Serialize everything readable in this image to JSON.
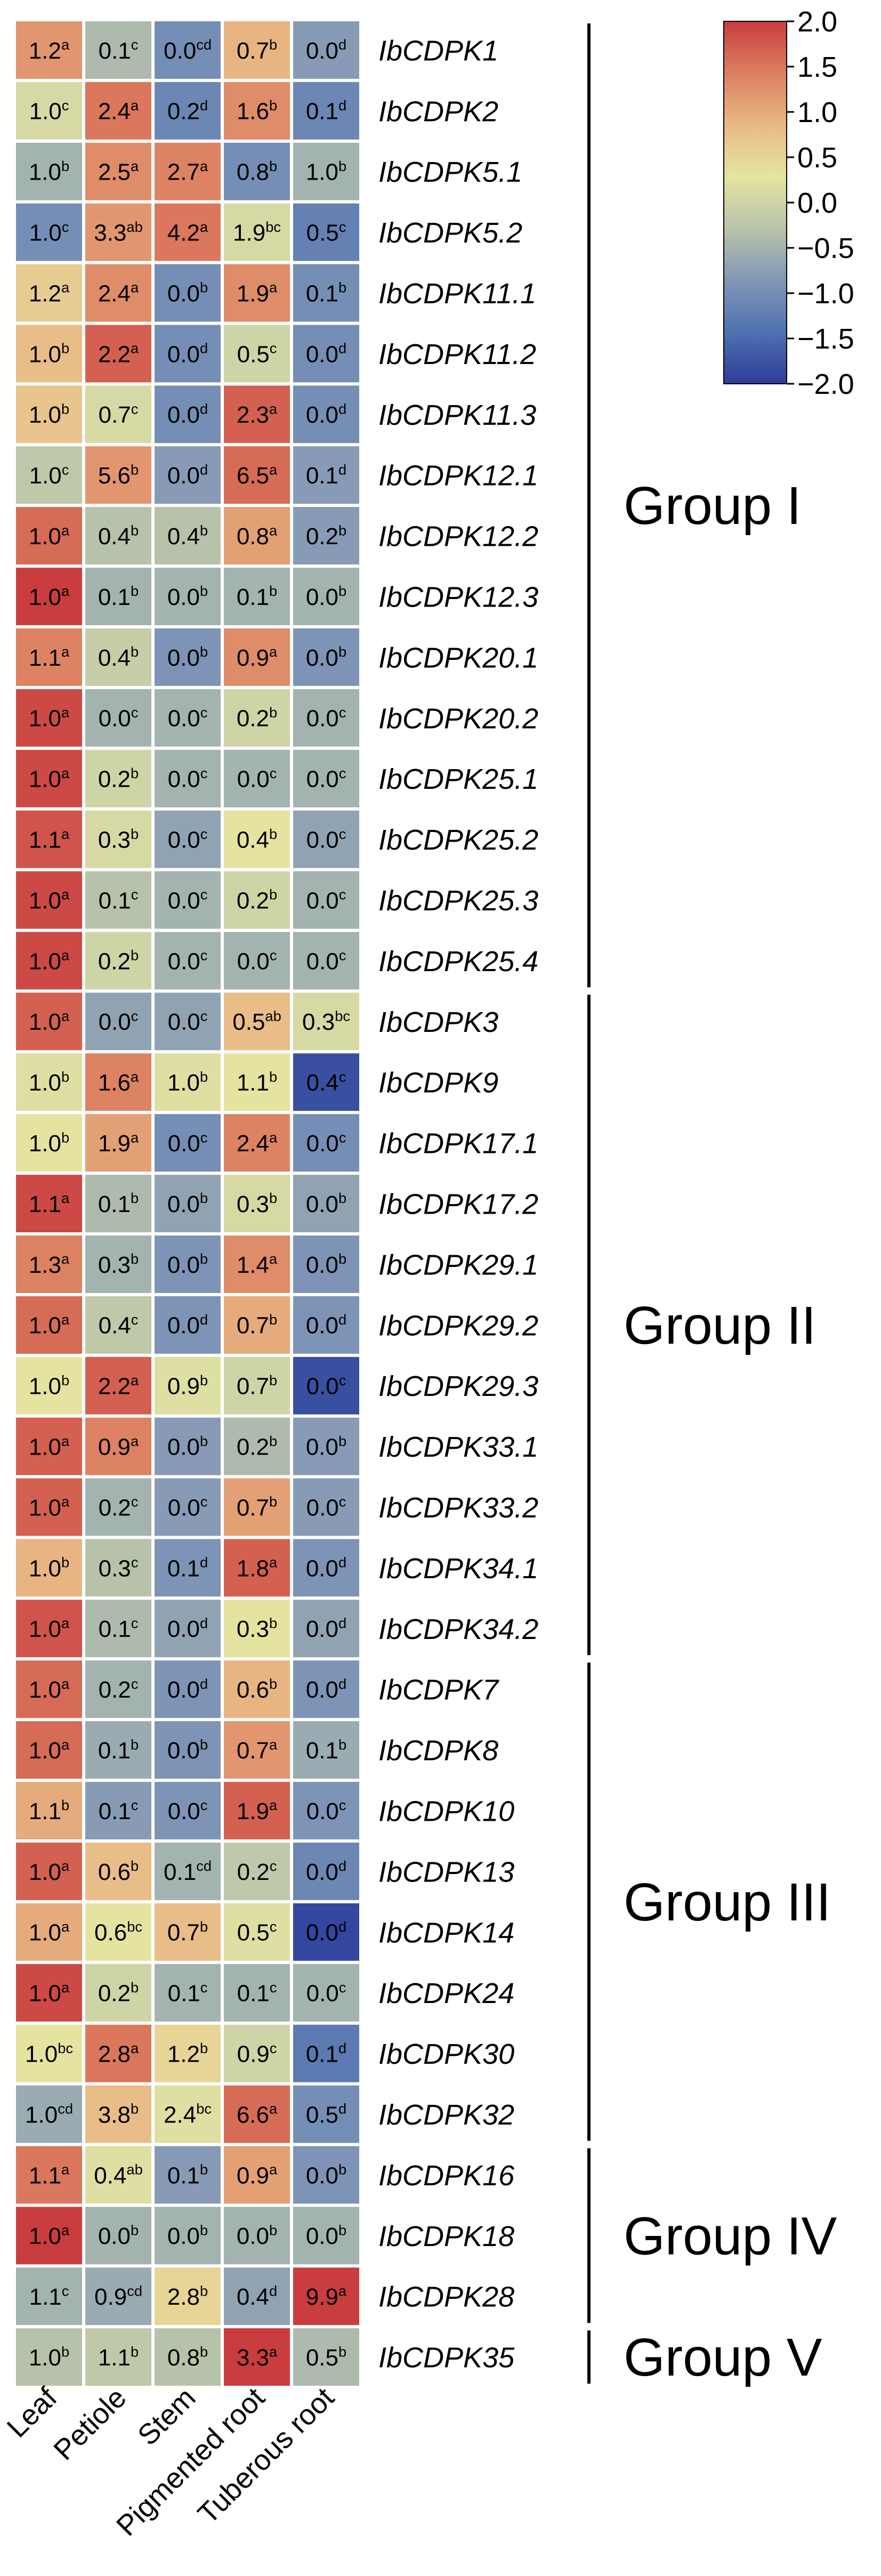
{
  "chart_data": {
    "type": "heatmap",
    "columns": [
      "Leaf",
      "Petiole",
      "Stem",
      "Pigmented root",
      "Tuberous root"
    ],
    "rows": [
      {
        "gene": "IbCDPK1",
        "z": [
          1.2,
          -0.4,
          -1.0,
          0.9,
          -0.8
        ],
        "labels": [
          [
            "1.2",
            "a"
          ],
          [
            "0.1",
            "c"
          ],
          [
            "0.0",
            "cd"
          ],
          [
            "0.7",
            "b"
          ],
          [
            "0.0",
            "d"
          ]
        ]
      },
      {
        "gene": "IbCDPK2",
        "z": [
          0.1,
          1.5,
          -1.1,
          1.3,
          -1.1
        ],
        "labels": [
          [
            "1.0",
            "c"
          ],
          [
            "2.4",
            "a"
          ],
          [
            "0.2",
            "d"
          ],
          [
            "1.6",
            "b"
          ],
          [
            "0.1",
            "d"
          ]
        ]
      },
      {
        "gene": "IbCDPK5.1",
        "z": [
          -0.5,
          1.3,
          1.4,
          -1.0,
          -0.5
        ],
        "labels": [
          [
            "1.0",
            "b"
          ],
          [
            "2.5",
            "a"
          ],
          [
            "2.7",
            "a"
          ],
          [
            "0.8",
            "b"
          ],
          [
            "1.0",
            "b"
          ]
        ]
      },
      {
        "gene": "IbCDPK5.2",
        "z": [
          -1.0,
          1.2,
          1.5,
          0.1,
          -1.2
        ],
        "labels": [
          [
            "1.0",
            "c"
          ],
          [
            "3.3",
            "ab"
          ],
          [
            "4.2",
            "a"
          ],
          [
            "1.9",
            "bc"
          ],
          [
            "0.5",
            "c"
          ]
        ]
      },
      {
        "gene": "IbCDPK11.1",
        "z": [
          0.6,
          1.3,
          -1.0,
          1.3,
          -1.0
        ],
        "labels": [
          [
            "1.2",
            "a"
          ],
          [
            "2.4",
            "a"
          ],
          [
            "0.0",
            "b"
          ],
          [
            "1.9",
            "a"
          ],
          [
            "0.1",
            "b"
          ]
        ]
      },
      {
        "gene": "IbCDPK11.2",
        "z": [
          0.8,
          1.7,
          -1.0,
          0.0,
          -1.0
        ],
        "labels": [
          [
            "1.0",
            "b"
          ],
          [
            "2.2",
            "a"
          ],
          [
            "0.0",
            "d"
          ],
          [
            "0.5",
            "c"
          ],
          [
            "0.0",
            "d"
          ]
        ]
      },
      {
        "gene": "IbCDPK11.3",
        "z": [
          0.7,
          0.1,
          -1.0,
          1.7,
          -1.0
        ],
        "labels": [
          [
            "1.0",
            "b"
          ],
          [
            "0.7",
            "c"
          ],
          [
            "0.0",
            "d"
          ],
          [
            "2.3",
            "a"
          ],
          [
            "0.0",
            "d"
          ]
        ]
      },
      {
        "gene": "IbCDPK12.1",
        "z": [
          -0.2,
          1.2,
          -0.8,
          1.6,
          -0.8
        ],
        "labels": [
          [
            "1.0",
            "c"
          ],
          [
            "5.6",
            "b"
          ],
          [
            "0.0",
            "d"
          ],
          [
            "6.5",
            "a"
          ],
          [
            "0.1",
            "d"
          ]
        ]
      },
      {
        "gene": "IbCDPK12.2",
        "z": [
          1.6,
          -0.3,
          -0.3,
          1.1,
          -0.8
        ],
        "labels": [
          [
            "1.0",
            "a"
          ],
          [
            "0.4",
            "b"
          ],
          [
            "0.4",
            "b"
          ],
          [
            "0.8",
            "a"
          ],
          [
            "0.2",
            "b"
          ]
        ]
      },
      {
        "gene": "IbCDPK12.3",
        "z": [
          2.0,
          -0.5,
          -0.5,
          -0.5,
          -0.5
        ],
        "labels": [
          [
            "1.0",
            "a"
          ],
          [
            "0.1",
            "b"
          ],
          [
            "0.0",
            "b"
          ],
          [
            "0.1",
            "b"
          ],
          [
            "0.0",
            "b"
          ]
        ]
      },
      {
        "gene": "IbCDPK20.1",
        "z": [
          1.4,
          -0.1,
          -0.9,
          1.3,
          -0.9
        ],
        "labels": [
          [
            "1.1",
            "a"
          ],
          [
            "0.4",
            "b"
          ],
          [
            "0.0",
            "b"
          ],
          [
            "0.9",
            "a"
          ],
          [
            "0.0",
            "b"
          ]
        ]
      },
      {
        "gene": "IbCDPK20.2",
        "z": [
          1.9,
          -0.5,
          -0.5,
          0.0,
          -0.5
        ],
        "labels": [
          [
            "1.0",
            "a"
          ],
          [
            "0.0",
            "c"
          ],
          [
            "0.0",
            "c"
          ],
          [
            "0.2",
            "b"
          ],
          [
            "0.0",
            "c"
          ]
        ]
      },
      {
        "gene": "IbCDPK25.1",
        "z": [
          1.9,
          0.0,
          -0.5,
          -0.5,
          -0.5
        ],
        "labels": [
          [
            "1.0",
            "a"
          ],
          [
            "0.2",
            "b"
          ],
          [
            "0.0",
            "c"
          ],
          [
            "0.0",
            "c"
          ],
          [
            "0.0",
            "c"
          ]
        ]
      },
      {
        "gene": "IbCDPK25.2",
        "z": [
          1.8,
          0.1,
          -0.7,
          0.3,
          -0.7
        ],
        "labels": [
          [
            "1.1",
            "a"
          ],
          [
            "0.3",
            "b"
          ],
          [
            "0.0",
            "c"
          ],
          [
            "0.4",
            "b"
          ],
          [
            "0.0",
            "c"
          ]
        ]
      },
      {
        "gene": "IbCDPK25.3",
        "z": [
          1.9,
          -0.3,
          -0.5,
          0.0,
          -0.5
        ],
        "labels": [
          [
            "1.0",
            "a"
          ],
          [
            "0.1",
            "c"
          ],
          [
            "0.0",
            "c"
          ],
          [
            "0.2",
            "b"
          ],
          [
            "0.0",
            "c"
          ]
        ]
      },
      {
        "gene": "IbCDPK25.4",
        "z": [
          1.9,
          0.0,
          -0.5,
          -0.5,
          -0.5
        ],
        "labels": [
          [
            "1.0",
            "a"
          ],
          [
            "0.2",
            "b"
          ],
          [
            "0.0",
            "c"
          ],
          [
            "0.0",
            "c"
          ],
          [
            "0.0",
            "c"
          ]
        ]
      },
      {
        "gene": "IbCDPK3",
        "z": [
          1.7,
          -0.7,
          -0.7,
          0.8,
          0.1
        ],
        "labels": [
          [
            "1.0",
            "a"
          ],
          [
            "0.0",
            "c"
          ],
          [
            "0.0",
            "c"
          ],
          [
            "0.5",
            "ab"
          ],
          [
            "0.3",
            "bc"
          ]
        ]
      },
      {
        "gene": "IbCDPK9",
        "z": [
          0.2,
          1.4,
          0.2,
          0.3,
          -1.8
        ],
        "labels": [
          [
            "1.0",
            "b"
          ],
          [
            "1.6",
            "a"
          ],
          [
            "1.0",
            "b"
          ],
          [
            "1.1",
            "b"
          ],
          [
            "0.4",
            "c"
          ]
        ]
      },
      {
        "gene": "IbCDPK17.1",
        "z": [
          0.3,
          1.1,
          -1.0,
          1.4,
          -1.0
        ],
        "labels": [
          [
            "1.0",
            "b"
          ],
          [
            "1.9",
            "a"
          ],
          [
            "0.0",
            "c"
          ],
          [
            "2.4",
            "a"
          ],
          [
            "0.0",
            "c"
          ]
        ]
      },
      {
        "gene": "IbCDPK17.2",
        "z": [
          1.9,
          -0.4,
          -0.7,
          0.1,
          -0.7
        ],
        "labels": [
          [
            "1.1",
            "a"
          ],
          [
            "0.1",
            "b"
          ],
          [
            "0.0",
            "b"
          ],
          [
            "0.3",
            "b"
          ],
          [
            "0.0",
            "b"
          ]
        ]
      },
      {
        "gene": "IbCDPK29.1",
        "z": [
          1.4,
          -0.5,
          -0.9,
          1.3,
          -0.9
        ],
        "labels": [
          [
            "1.3",
            "a"
          ],
          [
            "0.3",
            "b"
          ],
          [
            "0.0",
            "b"
          ],
          [
            "1.4",
            "a"
          ],
          [
            "0.0",
            "b"
          ]
        ]
      },
      {
        "gene": "IbCDPK29.2",
        "z": [
          1.6,
          -0.2,
          -0.9,
          1.0,
          -0.9
        ],
        "labels": [
          [
            "1.0",
            "a"
          ],
          [
            "0.4",
            "c"
          ],
          [
            "0.0",
            "d"
          ],
          [
            "0.7",
            "b"
          ],
          [
            "0.0",
            "d"
          ]
        ]
      },
      {
        "gene": "IbCDPK29.3",
        "z": [
          0.3,
          1.7,
          0.2,
          0.0,
          -1.8
        ],
        "labels": [
          [
            "1.0",
            "b"
          ],
          [
            "2.2",
            "a"
          ],
          [
            "0.9",
            "b"
          ],
          [
            "0.7",
            "b"
          ],
          [
            "0.0",
            "c"
          ]
        ]
      },
      {
        "gene": "IbCDPK33.1",
        "z": [
          1.7,
          1.4,
          -0.8,
          -0.4,
          -0.8
        ],
        "labels": [
          [
            "1.0",
            "a"
          ],
          [
            "0.9",
            "a"
          ],
          [
            "0.0",
            "b"
          ],
          [
            "0.2",
            "b"
          ],
          [
            "0.0",
            "b"
          ]
        ]
      },
      {
        "gene": "IbCDPK33.2",
        "z": [
          1.7,
          -0.5,
          -0.8,
          1.1,
          -0.8
        ],
        "labels": [
          [
            "1.0",
            "a"
          ],
          [
            "0.2",
            "c"
          ],
          [
            "0.0",
            "c"
          ],
          [
            "0.7",
            "b"
          ],
          [
            "0.0",
            "c"
          ]
        ]
      },
      {
        "gene": "IbCDPK34.1",
        "z": [
          0.9,
          -0.3,
          -0.9,
          1.7,
          -0.9
        ],
        "labels": [
          [
            "1.0",
            "b"
          ],
          [
            "0.3",
            "c"
          ],
          [
            "0.1",
            "d"
          ],
          [
            "1.8",
            "a"
          ],
          [
            "0.0",
            "d"
          ]
        ]
      },
      {
        "gene": "IbCDPK34.2",
        "z": [
          1.8,
          -0.4,
          -0.7,
          0.3,
          -0.7
        ],
        "labels": [
          [
            "1.0",
            "a"
          ],
          [
            "0.1",
            "c"
          ],
          [
            "0.0",
            "d"
          ],
          [
            "0.3",
            "b"
          ],
          [
            "0.0",
            "d"
          ]
        ]
      },
      {
        "gene": "IbCDPK7",
        "z": [
          1.6,
          -0.5,
          -0.9,
          0.9,
          -0.9
        ],
        "labels": [
          [
            "1.0",
            "a"
          ],
          [
            "0.2",
            "c"
          ],
          [
            "0.0",
            "d"
          ],
          [
            "0.6",
            "b"
          ],
          [
            "0.0",
            "d"
          ]
        ]
      },
      {
        "gene": "IbCDPK8",
        "z": [
          1.6,
          -0.6,
          -0.9,
          1.2,
          -0.6
        ],
        "labels": [
          [
            "1.0",
            "a"
          ],
          [
            "0.1",
            "b"
          ],
          [
            "0.0",
            "b"
          ],
          [
            "0.7",
            "a"
          ],
          [
            "0.1",
            "b"
          ]
        ]
      },
      {
        "gene": "IbCDPK10",
        "z": [
          1.0,
          -0.8,
          -0.9,
          1.7,
          -0.9
        ],
        "labels": [
          [
            "1.1",
            "b"
          ],
          [
            "0.1",
            "c"
          ],
          [
            "0.0",
            "c"
          ],
          [
            "1.9",
            "a"
          ],
          [
            "0.0",
            "c"
          ]
        ]
      },
      {
        "gene": "IbCDPK13",
        "z": [
          1.7,
          0.8,
          -0.5,
          -0.2,
          -1.1
        ],
        "labels": [
          [
            "1.0",
            "a"
          ],
          [
            "0.6",
            "b"
          ],
          [
            "0.1",
            "cd"
          ],
          [
            "0.2",
            "c"
          ],
          [
            "0.0",
            "d"
          ]
        ]
      },
      {
        "gene": "IbCDPK14",
        "z": [
          1.0,
          0.3,
          0.8,
          0.2,
          -1.9
        ],
        "labels": [
          [
            "1.0",
            "a"
          ],
          [
            "0.6",
            "bc"
          ],
          [
            "0.7",
            "b"
          ],
          [
            "0.5",
            "c"
          ],
          [
            "0.0",
            "d"
          ]
        ]
      },
      {
        "gene": "IbCDPK24",
        "z": [
          1.9,
          0.0,
          -0.5,
          -0.5,
          -0.5
        ],
        "labels": [
          [
            "1.0",
            "a"
          ],
          [
            "0.2",
            "b"
          ],
          [
            "0.1",
            "c"
          ],
          [
            "0.1",
            "c"
          ],
          [
            "0.0",
            "c"
          ]
        ]
      },
      {
        "gene": "IbCDPK30",
        "z": [
          0.3,
          1.5,
          0.5,
          0.0,
          -1.3
        ],
        "labels": [
          [
            "1.0",
            "bc"
          ],
          [
            "2.8",
            "a"
          ],
          [
            "1.2",
            "b"
          ],
          [
            "0.9",
            "c"
          ],
          [
            "0.1",
            "d"
          ]
        ]
      },
      {
        "gene": "IbCDPK32",
        "z": [
          -0.6,
          0.8,
          0.2,
          1.6,
          -1.0
        ],
        "labels": [
          [
            "1.0",
            "cd"
          ],
          [
            "3.8",
            "b"
          ],
          [
            "2.4",
            "bc"
          ],
          [
            "6.6",
            "a"
          ],
          [
            "0.5",
            "d"
          ]
        ]
      },
      {
        "gene": "IbCDPK16",
        "z": [
          1.5,
          0.2,
          -0.8,
          1.1,
          -0.9
        ],
        "labels": [
          [
            "1.1",
            "a"
          ],
          [
            "0.4",
            "ab"
          ],
          [
            "0.1",
            "b"
          ],
          [
            "0.9",
            "a"
          ],
          [
            "0.0",
            "b"
          ]
        ]
      },
      {
        "gene": "IbCDPK18",
        "z": [
          2.0,
          -0.5,
          -0.5,
          -0.5,
          -0.5
        ],
        "labels": [
          [
            "1.0",
            "a"
          ],
          [
            "0.0",
            "b"
          ],
          [
            "0.0",
            "b"
          ],
          [
            "0.0",
            "b"
          ],
          [
            "0.0",
            "b"
          ]
        ]
      },
      {
        "gene": "IbCDPK28",
        "z": [
          -0.5,
          -0.6,
          0.5,
          -0.7,
          2.0
        ],
        "labels": [
          [
            "1.1",
            "c"
          ],
          [
            "0.9",
            "cd"
          ],
          [
            "2.8",
            "b"
          ],
          [
            "0.4",
            "d"
          ],
          [
            "9.9",
            "a"
          ]
        ]
      },
      {
        "gene": "IbCDPK35",
        "z": [
          -0.3,
          -0.2,
          -0.3,
          2.0,
          -0.4
        ],
        "labels": [
          [
            "1.0",
            "b"
          ],
          [
            "1.1",
            "b"
          ],
          [
            "0.8",
            "b"
          ],
          [
            "3.3",
            "a"
          ],
          [
            "0.5",
            "b"
          ]
        ]
      }
    ],
    "groups": [
      {
        "name": "Group I",
        "start": 0,
        "end": 15
      },
      {
        "name": "Group II",
        "start": 16,
        "end": 26
      },
      {
        "name": "Group III",
        "start": 27,
        "end": 34
      },
      {
        "name": "Group IV",
        "start": 35,
        "end": 37
      },
      {
        "name": "Group V",
        "start": 38,
        "end": 38
      }
    ],
    "colorbar": {
      "min": -2.0,
      "max": 2.0,
      "ticks": [
        "2.0",
        "1.5",
        "1.0",
        "0.5",
        "0.0",
        "−0.5",
        "−1.0",
        "−1.5",
        "−2.0"
      ],
      "tick_values": [
        2.0,
        1.5,
        1.0,
        0.5,
        0.0,
        -0.5,
        -1.0,
        -1.5,
        -2.0
      ],
      "colors": [
        "#2d3e9a",
        "#4f72af",
        "#8197b7",
        "#b8c3aa",
        "#e5e4a1",
        "#e9b985",
        "#dc7f60",
        "#c93d3f"
      ]
    }
  }
}
